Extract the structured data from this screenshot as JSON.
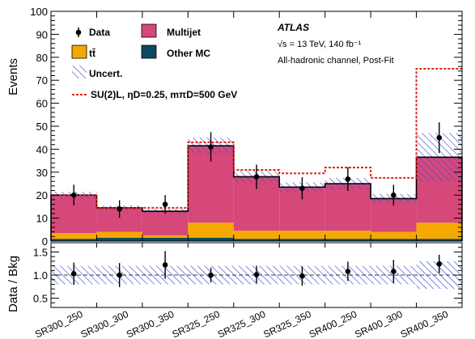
{
  "experiment": "ATLAS",
  "info_line1": "√s = 13 TeV, 140 fb⁻¹",
  "info_line2": "All-hadronic channel, Post-Fit",
  "colors": {
    "multijet": "#d6487a",
    "ttbar": "#f5a800",
    "other_mc": "#0b4a5e",
    "uncert": "#3a4fd8",
    "signal": "#e0221a",
    "data": "#000000"
  },
  "legend": {
    "data": "Data",
    "multijet": "Multijet",
    "ttbar": "tt̄",
    "other_mc": "Other MC",
    "uncert": "Uncert.",
    "signal": "SU(2)L, ηD=0.25, mπD=500 GeV"
  },
  "chart_data": [
    {
      "type": "bar",
      "stacked": true,
      "ylabel": "Events",
      "ylim": [
        0,
        100
      ],
      "yticks": [
        0,
        10,
        20,
        30,
        40,
        50,
        60,
        70,
        80,
        90,
        100
      ],
      "categories": [
        "SR300_250",
        "SR300_300",
        "SR300_350",
        "SR325_250",
        "SR325_300",
        "SR325_350",
        "SR400_250",
        "SR400_300",
        "SR400_350"
      ],
      "series": [
        {
          "name": "Other MC",
          "values": [
            1.0,
            1.5,
            1.5,
            1.5,
            1.0,
            1.0,
            1.0,
            1.0,
            1.0
          ]
        },
        {
          "name": "tt̄",
          "values": [
            2.5,
            2.5,
            1.0,
            6.5,
            3.5,
            3.5,
            3.5,
            3.0,
            7.0
          ]
        },
        {
          "name": "Multijet",
          "values": [
            16.5,
            10.5,
            10.5,
            33.5,
            23.5,
            19.0,
            20.5,
            14.5,
            28.5
          ]
        }
      ],
      "total_uncertainty": [
        1.5,
        1.0,
        1.0,
        3.5,
        2.5,
        2.0,
        2.5,
        2.0,
        10.5
      ],
      "signal_plus_background": [
        20.0,
        14.5,
        14.5,
        43.0,
        31.0,
        29.5,
        32.0,
        27.5,
        75.0
      ],
      "data": [
        {
          "value": 20.0,
          "error": 4.5
        },
        {
          "value": 14.0,
          "error": 3.8
        },
        {
          "value": 16.0,
          "error": 4.0
        },
        {
          "value": 41.0,
          "error": 6.4
        },
        {
          "value": 28.0,
          "error": 5.3
        },
        {
          "value": 23.0,
          "error": 4.8
        },
        {
          "value": 27.0,
          "error": 5.2
        },
        {
          "value": 20.0,
          "error": 4.5
        },
        {
          "value": 45.0,
          "error": 6.7
        }
      ]
    },
    {
      "type": "scatter",
      "ylabel": "Data / Bkg",
      "ylim": [
        0.3,
        1.7
      ],
      "yticks": [
        0.5,
        1.0,
        1.5
      ],
      "reference": 1.0,
      "uncert_band": [
        [
          0.8,
          1.2
        ],
        [
          0.8,
          1.2
        ],
        [
          0.8,
          1.2
        ],
        [
          0.8,
          1.2
        ],
        [
          0.8,
          1.2
        ],
        [
          0.8,
          1.2
        ],
        [
          0.8,
          1.2
        ],
        [
          0.8,
          1.2
        ],
        [
          0.7,
          1.3
        ]
      ],
      "points": [
        {
          "value": 1.03,
          "error": 0.24
        },
        {
          "value": 1.0,
          "error": 0.26
        },
        {
          "value": 1.22,
          "error": 0.3
        },
        {
          "value": 1.0,
          "error": 0.16
        },
        {
          "value": 1.01,
          "error": 0.19
        },
        {
          "value": 0.98,
          "error": 0.21
        },
        {
          "value": 1.08,
          "error": 0.21
        },
        {
          "value": 1.08,
          "error": 0.25
        },
        {
          "value": 1.24,
          "error": 0.2
        }
      ]
    }
  ]
}
